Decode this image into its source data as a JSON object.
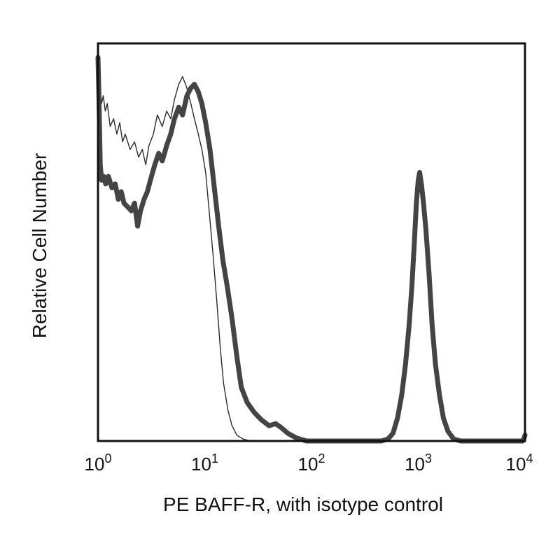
{
  "chart_data": {
    "type": "line",
    "title": "",
    "xlabel": "PE BAFF-R, with isotype control",
    "ylabel": "Relative Cell Number",
    "x_scale": "log",
    "xlim": [
      1,
      10000
    ],
    "ylim": [
      0,
      1
    ],
    "grid": false,
    "legend": "none",
    "x_ticks": [
      {
        "value": 1,
        "base": "10",
        "exp": "0"
      },
      {
        "value": 10,
        "base": "10",
        "exp": "1"
      },
      {
        "value": 100,
        "base": "10",
        "exp": "2"
      },
      {
        "value": 1000,
        "base": "10",
        "exp": "3"
      },
      {
        "value": 10000,
        "base": "10",
        "exp": "4"
      }
    ],
    "series": [
      {
        "key": "isotype",
        "color": "#2a2a2a",
        "style": "thin",
        "points": [
          [
            1.0,
            1.0
          ],
          [
            1.04,
            0.93
          ],
          [
            1.08,
            0.88
          ],
          [
            1.12,
            0.9
          ],
          [
            1.17,
            0.86
          ],
          [
            1.22,
            0.88
          ],
          [
            1.3,
            0.82
          ],
          [
            1.4,
            0.84
          ],
          [
            1.5,
            0.8
          ],
          [
            1.6,
            0.83
          ],
          [
            1.7,
            0.78
          ],
          [
            1.8,
            0.8
          ],
          [
            2.0,
            0.76
          ],
          [
            2.2,
            0.78
          ],
          [
            2.4,
            0.74
          ],
          [
            2.6,
            0.76
          ],
          [
            2.8,
            0.72
          ],
          [
            3.0,
            0.77
          ],
          [
            3.3,
            0.8
          ],
          [
            3.6,
            0.85
          ],
          [
            4.0,
            0.82
          ],
          [
            4.4,
            0.86
          ],
          [
            4.8,
            0.84
          ],
          [
            5.2,
            0.89
          ],
          [
            5.7,
            0.93
          ],
          [
            6.2,
            0.95
          ],
          [
            6.8,
            0.92
          ],
          [
            7.4,
            0.88
          ],
          [
            8.0,
            0.84
          ],
          [
            8.7,
            0.8
          ],
          [
            9.4,
            0.76
          ],
          [
            10.2,
            0.7
          ],
          [
            11.0,
            0.6
          ],
          [
            12.0,
            0.48
          ],
          [
            13.0,
            0.36
          ],
          [
            14.0,
            0.24
          ],
          [
            15.0,
            0.15
          ],
          [
            16.5,
            0.08
          ],
          [
            18.0,
            0.04
          ],
          [
            20.0,
            0.015
          ],
          [
            23.0,
            0.005
          ],
          [
            27.0,
            0.0
          ],
          [
            10000.0,
            0.0
          ]
        ]
      },
      {
        "key": "BAFF-R",
        "color": "#444444",
        "style": "thick",
        "points": [
          [
            1.0,
            1.0
          ],
          [
            1.02,
            0.9
          ],
          [
            1.05,
            0.72
          ],
          [
            1.08,
            0.68
          ],
          [
            1.13,
            0.69
          ],
          [
            1.18,
            0.67
          ],
          [
            1.25,
            0.69
          ],
          [
            1.35,
            0.66
          ],
          [
            1.45,
            0.67
          ],
          [
            1.55,
            0.63
          ],
          [
            1.65,
            0.65
          ],
          [
            1.75,
            0.62
          ],
          [
            1.9,
            0.61
          ],
          [
            2.05,
            0.6
          ],
          [
            2.2,
            0.62
          ],
          [
            2.35,
            0.56
          ],
          [
            2.5,
            0.6
          ],
          [
            2.7,
            0.63
          ],
          [
            2.9,
            0.65
          ],
          [
            3.1,
            0.68
          ],
          [
            3.4,
            0.72
          ],
          [
            3.7,
            0.75
          ],
          [
            4.0,
            0.73
          ],
          [
            4.4,
            0.77
          ],
          [
            4.8,
            0.8
          ],
          [
            5.2,
            0.84
          ],
          [
            5.7,
            0.87
          ],
          [
            6.2,
            0.85
          ],
          [
            6.8,
            0.9
          ],
          [
            7.4,
            0.92
          ],
          [
            8.0,
            0.93
          ],
          [
            8.7,
            0.91
          ],
          [
            9.4,
            0.88
          ],
          [
            10.2,
            0.83
          ],
          [
            11.2,
            0.76
          ],
          [
            12.3,
            0.66
          ],
          [
            13.5,
            0.56
          ],
          [
            14.8,
            0.47
          ],
          [
            16.3,
            0.4
          ],
          [
            18.0,
            0.32
          ],
          [
            20.0,
            0.22
          ],
          [
            22.0,
            0.14
          ],
          [
            25.0,
            0.1
          ],
          [
            29.0,
            0.075
          ],
          [
            34.0,
            0.055
          ],
          [
            40.0,
            0.04
          ],
          [
            46.0,
            0.045
          ],
          [
            52.0,
            0.035
          ],
          [
            60.0,
            0.02
          ],
          [
            72.0,
            0.008
          ],
          [
            90.0,
            0.0
          ],
          [
            450.0,
            0.0
          ],
          [
            520.0,
            0.005
          ],
          [
            580.0,
            0.02
          ],
          [
            640.0,
            0.06
          ],
          [
            700.0,
            0.12
          ],
          [
            760.0,
            0.2
          ],
          [
            820.0,
            0.3
          ],
          [
            870.0,
            0.4
          ],
          [
            920.0,
            0.52
          ],
          [
            960.0,
            0.62
          ],
          [
            1000.0,
            0.68
          ],
          [
            1030.0,
            0.7
          ],
          [
            1070.0,
            0.67
          ],
          [
            1120.0,
            0.62
          ],
          [
            1180.0,
            0.55
          ],
          [
            1260.0,
            0.44
          ],
          [
            1350.0,
            0.3
          ],
          [
            1450.0,
            0.2
          ],
          [
            1580.0,
            0.12
          ],
          [
            1720.0,
            0.06
          ],
          [
            1900.0,
            0.025
          ],
          [
            2150.0,
            0.005
          ],
          [
            2500.0,
            0.0
          ],
          [
            9500.0,
            0.0
          ],
          [
            9800.0,
            0.008
          ],
          [
            10000.0,
            0.015
          ]
        ]
      }
    ]
  }
}
